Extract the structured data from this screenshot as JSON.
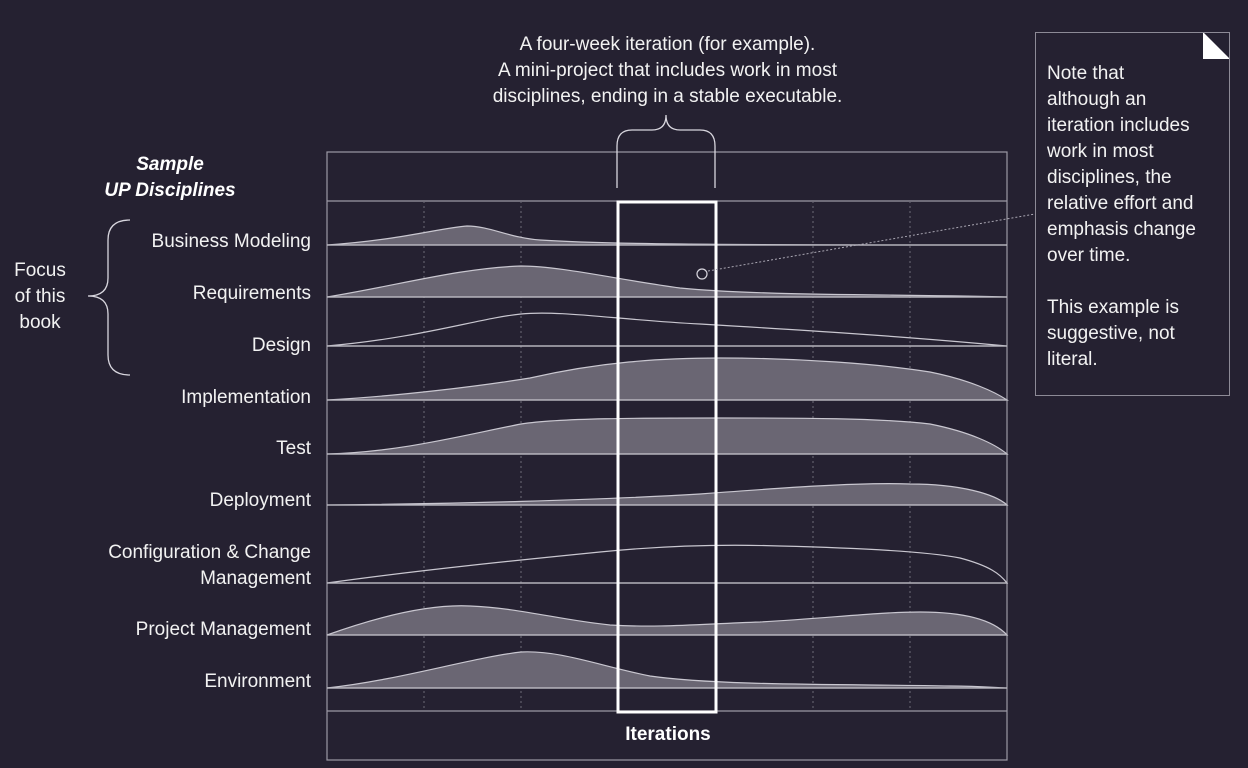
{
  "top_caption": {
    "line1": "A four-week iteration (for example).",
    "line2": "A mini-project that includes work in most",
    "line3": "disciplines, ending in a stable executable."
  },
  "heading": {
    "line1": "Sample",
    "line2": "UP Disciplines"
  },
  "focus": {
    "line1": "Focus",
    "line2": "of this",
    "line3": "book"
  },
  "disciplines": [
    "Business Modeling",
    "Requirements",
    "Design",
    "Implementation",
    "Test",
    "Deployment",
    "Configuration & Change",
    "Management",
    "Project Management",
    "Environment"
  ],
  "note": {
    "paragraph1": "Note that\nalthough an\niteration includes\nwork in most\ndisciplines, the\nrelative effort and\nemphasis change\nover time.",
    "paragraph2": "This example is\nsuggestive, not\nliteral."
  },
  "x_axis_label": "Iterations",
  "colors": {
    "background": "#252131",
    "curve_fill": "#6a6673",
    "lines": "#b8b6bf",
    "highlight": "#ffffff"
  }
}
